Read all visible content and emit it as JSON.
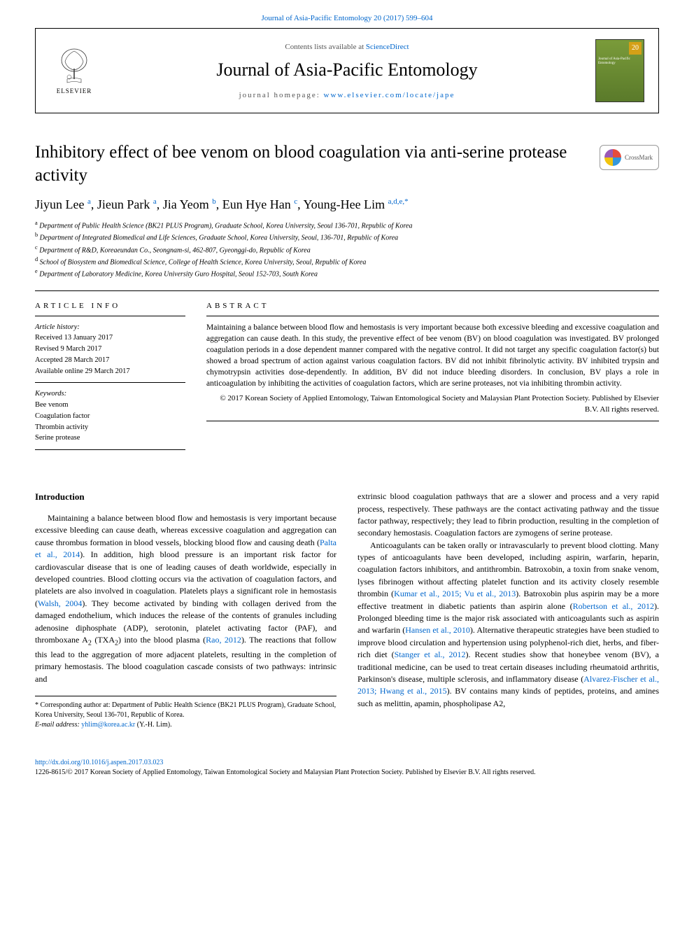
{
  "top_citation": "Journal of Asia-Pacific Entomology 20 (2017) 599–604",
  "header": {
    "contents_prefix": "Contents lists available at ",
    "contents_link": "ScienceDirect",
    "journal_name": "Journal of Asia-Pacific Entomology",
    "homepage_prefix": "journal homepage: ",
    "homepage_url": "www.elsevier.com/locate/jape",
    "publisher": "ELSEVIER",
    "cover_badge": "20",
    "cover_text": "Journal of\nAsia-Pacific Entomology"
  },
  "crossmark_label": "CrossMark",
  "article": {
    "title": "Inhibitory effect of bee venom on blood coagulation via anti-serine protease activity",
    "authors_html": "Jiyun Lee <sup>a</sup>, Jieun Park <sup>a</sup>, Jia Yeom <sup>b</sup>, Eun Hye Han <sup>c</sup>, Young-Hee Lim <sup>a,d,e,*</sup>",
    "affiliations": [
      "a Department of Public Health Science (BK21 PLUS Program), Graduate School, Korea University, Seoul 136-701, Republic of Korea",
      "b Department of Integrated Biomedical and Life Sciences, Graduate School, Korea University, Seoul, 136-701, Republic of Korea",
      "c Department of R&D, Koreaeundan Co., Seongnam-si, 462-807, Gyeonggi-do, Republic of Korea",
      "d School of Biosystem and Biomedical Science, College of Health Science, Korea University, Seoul, Republic of Korea",
      "e Department of Laboratory Medicine, Korea University Guro Hospital, Seoul 152-703, South Korea"
    ]
  },
  "info": {
    "heading": "ARTICLE INFO",
    "history_label": "Article history:",
    "history": [
      "Received 13 January 2017",
      "Revised 9 March 2017",
      "Accepted 28 March 2017",
      "Available online 29 March 2017"
    ],
    "keywords_label": "Keywords:",
    "keywords": [
      "Bee venom",
      "Coagulation factor",
      "Thrombin activity",
      "Serine protease"
    ]
  },
  "abstract": {
    "heading": "ABSTRACT",
    "text": "Maintaining a balance between blood flow and hemostasis is very important because both excessive bleeding and excessive coagulation and aggregation can cause death. In this study, the preventive effect of bee venom (BV) on blood coagulation was investigated. BV prolonged coagulation periods in a dose dependent manner compared with the negative control. It did not target any specific coagulation factor(s) but showed a broad spectrum of action against various coagulation factors. BV did not inhibit fibrinolytic activity. BV inhibited trypsin and chymotrypsin activities dose-dependently. In addition, BV did not induce bleeding disorders. In conclusion, BV plays a role in anticoagulation by inhibiting the activities of coagulation factors, which are serine proteases, not via inhibiting thrombin activity.",
    "copyright": "© 2017 Korean Society of Applied Entomology, Taiwan Entomological Society and Malaysian Plant Protection Society. Published by Elsevier B.V. All rights reserved."
  },
  "body": {
    "intro_heading": "Introduction",
    "col1_p1_a": "Maintaining a balance between blood flow and hemostasis is very important because excessive bleeding can cause death, whereas excessive coagulation and aggregation can cause thrombus formation in blood vessels, blocking blood flow and causing death (",
    "col1_p1_ref1": "Palta et al., 2014",
    "col1_p1_b": "). In addition, high blood pressure is an important risk factor for cardiovascular disease that is one of leading causes of death worldwide, especially in developed countries. Blood clotting occurs via the activation of coagulation factors, and platelets are also involved in coagulation. Platelets plays a significant role in hemostasis (",
    "col1_p1_ref2": "Walsh, 2004",
    "col1_p1_c": "). They become activated by binding with collagen derived from the damaged endothelium, which induces the release of the contents of granules including adenosine diphosphate (ADP), serotonin, platelet activating factor (PAF), and thromboxane A",
    "col1_p1_sub1": "2",
    "col1_p1_d": " (TXA",
    "col1_p1_sub2": "2",
    "col1_p1_e": ") into the blood plasma (",
    "col1_p1_ref3": "Rao, 2012",
    "col1_p1_f": "). The reactions that follow this lead to the aggregation of more adjacent platelets, resulting in the completion of primary hemostasis. The blood coagulation cascade consists of two pathways: intrinsic and",
    "col2_p1": "extrinsic blood coagulation pathways that are a slower and process and a very rapid process, respectively. These pathways are the contact activating pathway and the tissue factor pathway, respectively; they lead to fibrin production, resulting in the completion of secondary hemostasis. Coagulation factors are zymogens of serine protease.",
    "col2_p2_a": "Anticoagulants can be taken orally or intravascularly to prevent blood clotting. Many types of anticoagulants have been developed, including aspirin, warfarin, heparin, coagulation factors inhibitors, and antithrombin. Batroxobin, a toxin from snake venom, lyses fibrinogen without affecting platelet function and its activity closely resemble thrombin (",
    "col2_p2_ref1": "Kumar et al., 2015; Vu et al., 2013",
    "col2_p2_b": "). Batroxobin plus aspirin may be a more effective treatment in diabetic patients than aspirin alone (",
    "col2_p2_ref2": "Robertson et al., 2012",
    "col2_p2_c": "). Prolonged bleeding time is the major risk associated with anticoagulants such as aspirin and warfarin (",
    "col2_p2_ref3": "Hansen et al., 2010",
    "col2_p2_d": "). Alternative therapeutic strategies have been studied to improve blood circulation and hypertension using polyphenol-rich diet, herbs, and fiber-rich diet (",
    "col2_p2_ref4": "Stanger et al., 2012",
    "col2_p2_e": "). Recent studies show that honeybee venom (BV), a traditional medicine, can be used to treat certain diseases including rheumatoid arthritis, Parkinson's disease, multiple sclerosis, and inflammatory disease (",
    "col2_p2_ref5": "Alvarez-Fischer et al., 2013; Hwang et al., 2015",
    "col2_p2_f": "). BV contains many kinds of peptides, proteins, and amines such as melittin, apamin, phospholipase A2,"
  },
  "footnote": {
    "corr": "* Corresponding author at: Department of Public Health Science (BK21 PLUS Program), Graduate School, Korea University, Seoul 136-701, Republic of Korea.",
    "email_label": "E-mail address: ",
    "email": "yhlim@korea.ac.kr",
    "email_suffix": " (Y.-H. Lim)."
  },
  "footer": {
    "doi": "http://dx.doi.org/10.1016/j.aspen.2017.03.023",
    "issn_line": "1226-8615/© 2017 Korean Society of Applied Entomology, Taiwan Entomological Society and Malaysian Plant Protection Society. Published by Elsevier B.V. All rights reserved."
  },
  "colors": {
    "link": "#0066cc",
    "text": "#000000",
    "cover_bg_top": "#7a9b3a",
    "cover_bg_bottom": "#5a7a2a",
    "cover_badge": "#d4a017"
  },
  "typography": {
    "title_fontsize": 25,
    "journal_fontsize": 26,
    "authors_fontsize": 18,
    "body_fontsize": 12,
    "abstract_fontsize": 11.5,
    "affiliation_fontsize": 10,
    "footer_fontsize": 10
  }
}
